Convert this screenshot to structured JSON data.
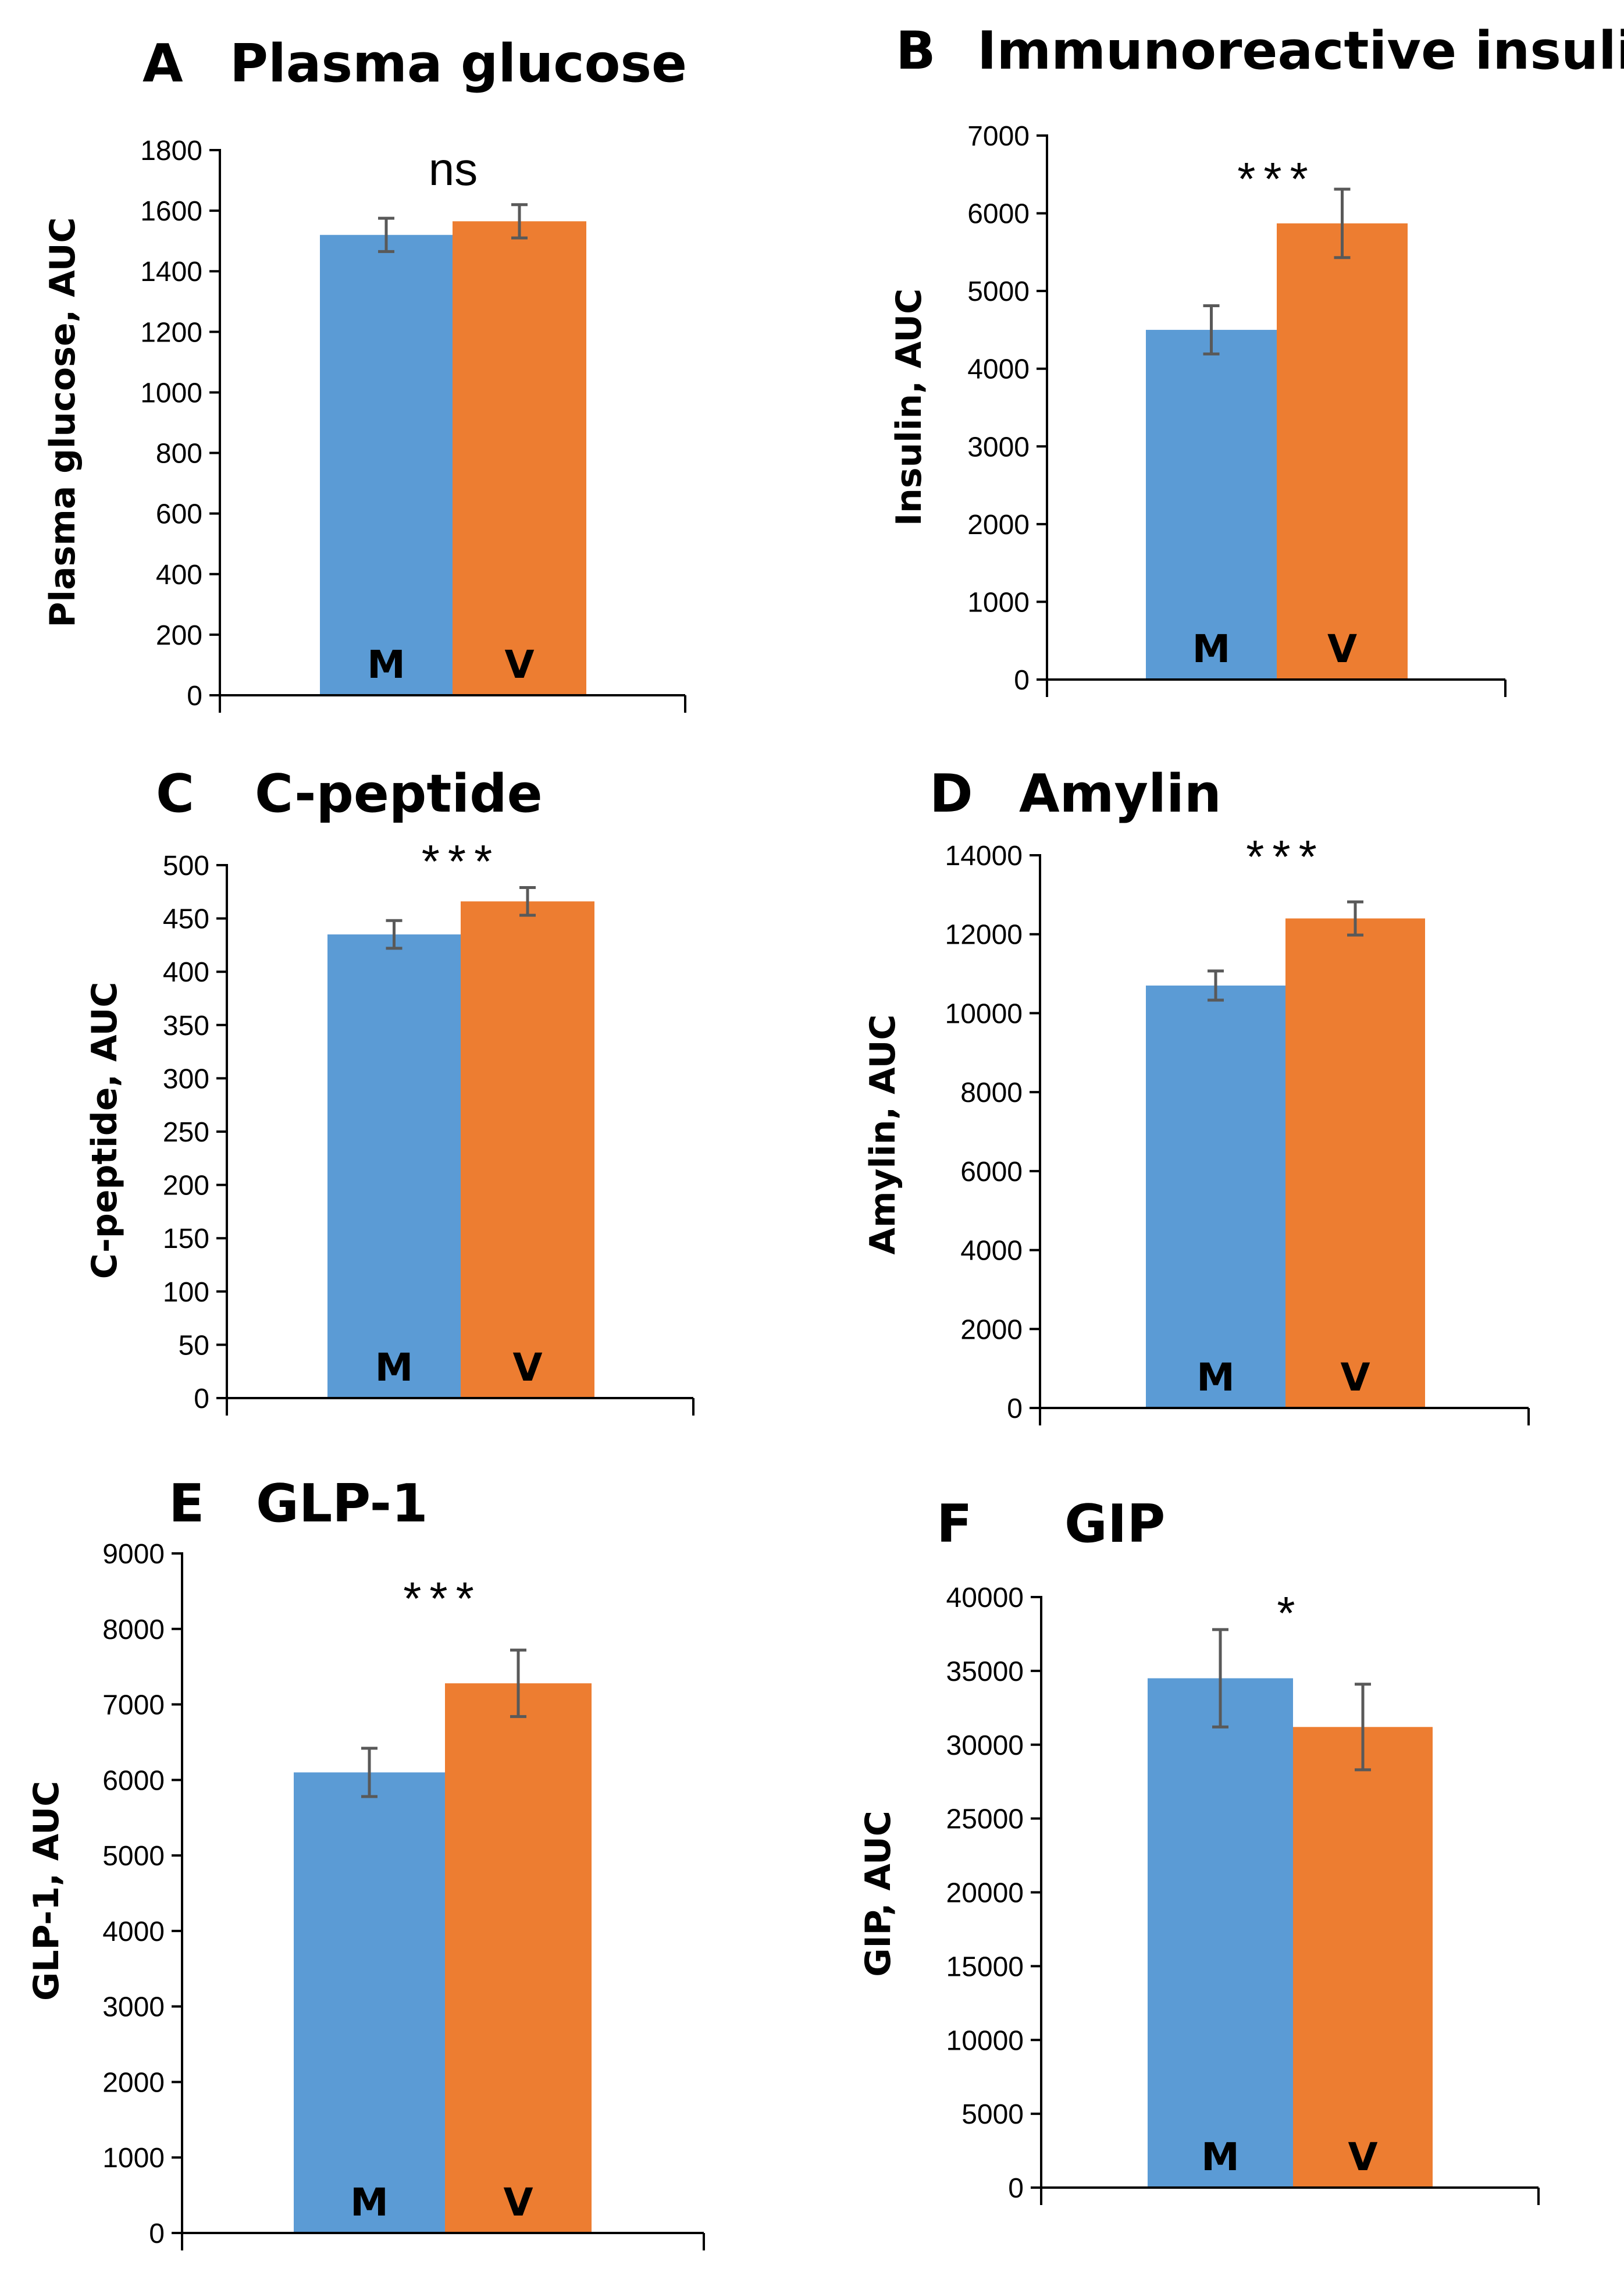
{
  "colors": {
    "M": "#5B9BD5",
    "V": "#ED7D31",
    "axis": "#000000",
    "error": "#595959"
  },
  "chart_data": [
    {
      "panel": "A",
      "title": "Plasma glucose",
      "type": "bar",
      "ylabel": "Plasma glucose, AUC",
      "categories": [
        "M",
        "V"
      ],
      "values": [
        1520,
        1565
      ],
      "errors": [
        55,
        55
      ],
      "ylim": [
        0,
        1800
      ],
      "ytick_step": 200,
      "yticks": [
        "0",
        "200",
        "400",
        "600",
        "800",
        "1000",
        "1200",
        "1400",
        "1600",
        "1800"
      ],
      "significance": "ns"
    },
    {
      "panel": "B",
      "title": "Immunoreactive insulin",
      "type": "bar",
      "ylabel": "Insulin, AUC",
      "categories": [
        "M",
        "V"
      ],
      "values": [
        4500,
        5870
      ],
      "errors": [
        310,
        440
      ],
      "ylim": [
        0,
        7000
      ],
      "ytick_step": 1000,
      "yticks": [
        "0",
        "1000",
        "2000",
        "3000",
        "4000",
        "5000",
        "6000",
        "7000"
      ],
      "significance": "***"
    },
    {
      "panel": "C",
      "title": "C-peptide",
      "type": "bar",
      "ylabel": "C-peptide, AUC",
      "categories": [
        "M",
        "V"
      ],
      "values": [
        435,
        466
      ],
      "errors": [
        13,
        13
      ],
      "ylim": [
        0,
        500
      ],
      "ytick_step": 50,
      "yticks": [
        "0",
        "50",
        "100",
        "150",
        "200",
        "250",
        "300",
        "350",
        "400",
        "450",
        "500"
      ],
      "significance": "***"
    },
    {
      "panel": "D",
      "title": "Amylin",
      "type": "bar",
      "ylabel": "Amylin, AUC",
      "categories": [
        "M",
        "V"
      ],
      "values": [
        10700,
        12400
      ],
      "errors": [
        370,
        420
      ],
      "ylim": [
        0,
        14000
      ],
      "ytick_step": 2000,
      "yticks": [
        "0",
        "2000",
        "4000",
        "6000",
        "8000",
        "10000",
        "12000",
        "14000"
      ],
      "significance": "***"
    },
    {
      "panel": "E",
      "title": "GLP-1",
      "type": "bar",
      "ylabel": "GLP-1, AUC",
      "categories": [
        "M",
        "V"
      ],
      "values": [
        6100,
        7280
      ],
      "errors": [
        320,
        440
      ],
      "ylim": [
        0,
        9000
      ],
      "ytick_step": 1000,
      "yticks": [
        "0",
        "1000",
        "2000",
        "3000",
        "4000",
        "5000",
        "6000",
        "7000",
        "8000",
        "9000"
      ],
      "significance": "***"
    },
    {
      "panel": "F",
      "title": "GIP",
      "type": "bar",
      "ylabel": "GIP, AUC",
      "categories": [
        "M",
        "V"
      ],
      "values": [
        34500,
        31200
      ],
      "errors": [
        3300,
        2900
      ],
      "ylim": [
        0,
        40000
      ],
      "ytick_step": 5000,
      "yticks": [
        "0",
        "5000",
        "10000",
        "15000",
        "20000",
        "25000",
        "30000",
        "35000",
        "40000"
      ],
      "significance": "*"
    }
  ]
}
